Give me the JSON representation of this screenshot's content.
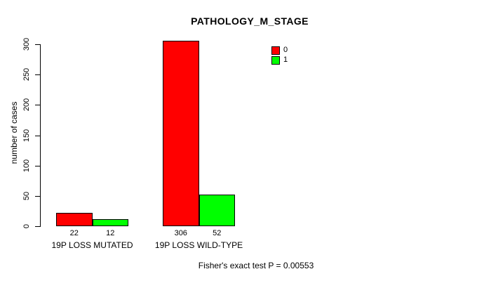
{
  "chart_data": {
    "type": "bar",
    "title": "PATHOLOGY_M_STAGE",
    "ylabel": "number of cases",
    "xlabel": "",
    "yticks": [
      0,
      50,
      100,
      150,
      200,
      250,
      300
    ],
    "ylim": [
      0,
      300
    ],
    "grid": false,
    "legend_position": "top-right",
    "categories": [
      "19P LOSS MUTATED",
      "19P LOSS WILD-TYPE"
    ],
    "series": [
      {
        "name": "0",
        "color": "#FF0000",
        "values": [
          22,
          306
        ]
      },
      {
        "name": "1",
        "color": "#00FF00",
        "values": [
          12,
          52
        ]
      }
    ],
    "footer": "Fisher's exact test P = 0.00553"
  }
}
